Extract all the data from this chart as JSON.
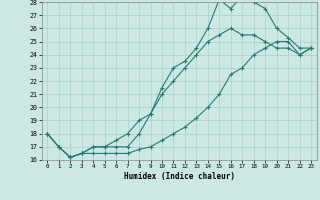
{
  "xlabel": "Humidex (Indice chaleur)",
  "xlim": [
    -0.5,
    23.5
  ],
  "ylim": [
    16,
    28
  ],
  "xticks": [
    0,
    1,
    2,
    3,
    4,
    5,
    6,
    7,
    8,
    9,
    10,
    11,
    12,
    13,
    14,
    15,
    16,
    17,
    18,
    19,
    20,
    21,
    22,
    23
  ],
  "yticks": [
    16,
    17,
    18,
    19,
    20,
    21,
    22,
    23,
    24,
    25,
    26,
    27,
    28
  ],
  "line_color": "#2a7a6a",
  "bg_color": "#cce8e4",
  "grid_color": "#aacfcc",
  "line1_x": [
    0,
    1,
    2,
    3,
    4,
    5,
    6,
    7,
    8,
    9,
    10,
    11,
    12,
    13,
    14,
    15,
    16,
    17,
    18,
    19,
    20,
    21,
    22,
    23
  ],
  "line1_y": [
    18,
    17,
    16.2,
    16.5,
    17,
    17,
    17,
    17,
    18,
    19.5,
    21,
    22,
    23,
    24,
    25,
    25.5,
    26,
    25.5,
    25.5,
    25,
    24.5,
    24.5,
    24,
    24.5
  ],
  "line2_x": [
    0,
    1,
    2,
    3,
    4,
    5,
    6,
    7,
    8,
    9,
    10,
    11,
    12,
    13,
    14,
    15,
    16,
    17,
    18,
    19,
    20,
    21,
    22,
    23
  ],
  "line2_y": [
    18,
    17,
    16.2,
    16.5,
    17,
    17,
    17.5,
    18,
    19,
    19.5,
    21.5,
    23,
    23.5,
    24.5,
    26,
    28.2,
    27.5,
    28.5,
    28,
    27.5,
    26,
    25.3,
    24.5,
    24.5
  ],
  "line3_x": [
    0,
    1,
    2,
    3,
    4,
    5,
    6,
    7,
    8,
    9,
    10,
    11,
    12,
    13,
    14,
    15,
    16,
    17,
    18,
    19,
    20,
    21,
    22,
    23
  ],
  "line3_y": [
    18,
    17,
    16.2,
    16.5,
    16.5,
    16.5,
    16.5,
    16.5,
    16.8,
    17,
    17.5,
    18,
    18.5,
    19.2,
    20,
    21,
    22.5,
    23,
    24,
    24.5,
    25,
    25,
    24,
    24.5
  ]
}
